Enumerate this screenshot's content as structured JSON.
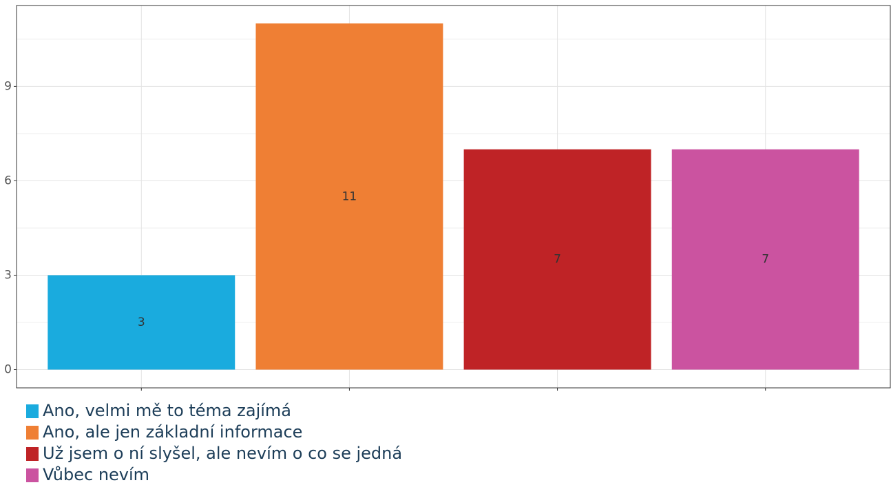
{
  "chart_data": {
    "type": "bar",
    "categories": [
      "Ano, velmi mě to téma zajímá",
      "Ano, ale jen základní informace",
      "Už jsem o ní slyšel, ale nevím o co se jedná",
      "Vůbec nevím"
    ],
    "values": [
      3,
      11,
      7,
      7
    ],
    "colors": [
      "#1aabde",
      "#ef7f34",
      "#bf2326",
      "#cb53a0"
    ],
    "ylim": [
      -0.58,
      11.57
    ],
    "yticks": [
      0,
      3,
      6,
      9
    ],
    "grid": true,
    "legend": "bottom"
  }
}
